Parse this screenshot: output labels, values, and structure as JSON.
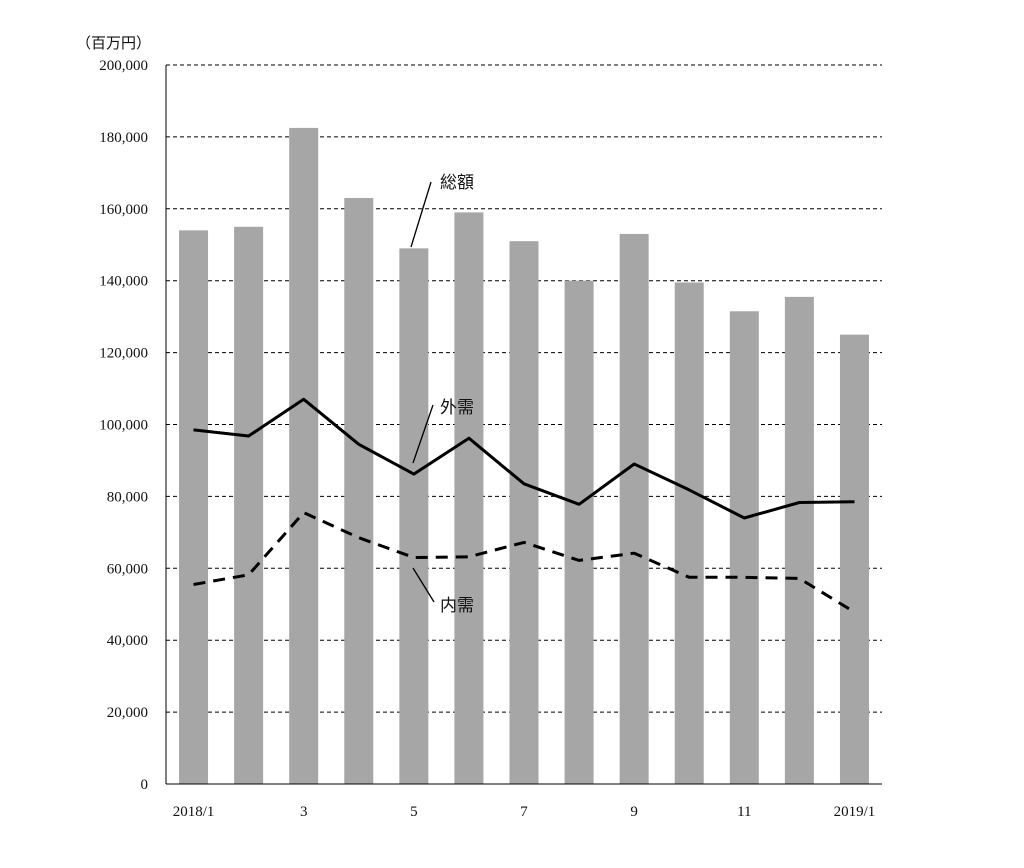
{
  "chart_data": {
    "type": "bar",
    "unit_label": "（百万円）",
    "categories": [
      "2018/1",
      "2",
      "3",
      "4",
      "5",
      "6",
      "7",
      "8",
      "9",
      "10",
      "11",
      "12",
      "2019/1"
    ],
    "x_tick_labels": [
      "2018/1",
      "",
      "3",
      "",
      "5",
      "",
      "7",
      "",
      "9",
      "",
      "11",
      "",
      "2019/1"
    ],
    "ylim": [
      0,
      200000
    ],
    "y_ticks": [
      0,
      20000,
      40000,
      60000,
      80000,
      100000,
      120000,
      140000,
      160000,
      180000,
      200000
    ],
    "y_tick_labels": [
      "0",
      "20,000",
      "40,000",
      "60,000",
      "80,000",
      "100,000",
      "120,000",
      "140,000",
      "160,000",
      "180,000",
      "200,000"
    ],
    "grid": "dashed horizontal",
    "series": [
      {
        "name": "総額",
        "kind": "bar",
        "color": "#a6a6a6",
        "values": [
          154000,
          155000,
          182500,
          163000,
          149000,
          159000,
          151000,
          140000,
          153000,
          139500,
          131500,
          135500,
          125000
        ]
      },
      {
        "name": "外需",
        "kind": "line",
        "style": "solid",
        "color": "#000000",
        "values": [
          98500,
          96800,
          107000,
          94500,
          86200,
          96200,
          83500,
          77800,
          89000,
          81800,
          74000,
          78300,
          78500
        ]
      },
      {
        "name": "内需",
        "kind": "line",
        "style": "dashed",
        "color": "#000000",
        "values": [
          55500,
          58200,
          75500,
          68500,
          63000,
          63200,
          67200,
          62200,
          64200,
          57500,
          57500,
          57200,
          47800
        ]
      }
    ]
  }
}
